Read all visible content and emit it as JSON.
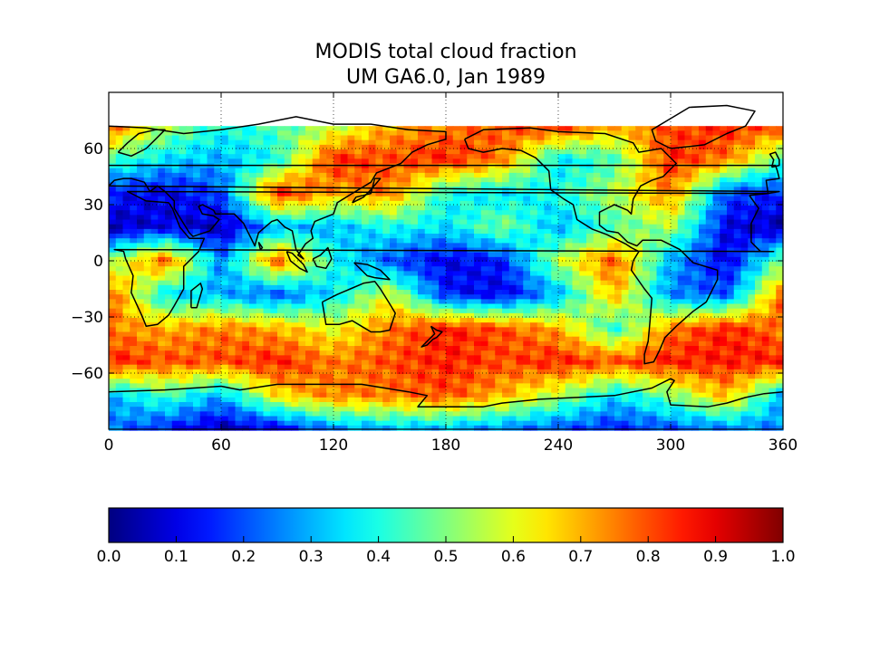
{
  "chart_data": {
    "type": "heatmap",
    "title": "MODIS total cloud fraction",
    "subtitle": "UM GA6.0, Jan 1989",
    "xlim": [
      0,
      360
    ],
    "ylim": [
      -90,
      90
    ],
    "x_ticks": [
      "0",
      "60",
      "120",
      "180",
      "240",
      "300",
      "360"
    ],
    "y_ticks": [
      "60",
      "30",
      "0",
      "−30",
      "−60"
    ],
    "y_tick_values": [
      60,
      30,
      0,
      -30,
      -60
    ],
    "x_tick_values": [
      0,
      60,
      120,
      180,
      240,
      300,
      360
    ],
    "grid": true,
    "data_lat_range": [
      -90,
      72
    ],
    "colorbar": {
      "orientation": "horizontal",
      "colormap": "jet",
      "range": [
        0.0,
        1.0
      ],
      "ticks": [
        "0.0",
        "0.1",
        "0.2",
        "0.3",
        "0.4",
        "0.5",
        "0.6",
        "0.7",
        "0.8",
        "0.9",
        "1.0"
      ]
    },
    "value_grid": {
      "lat_step_deg": 18,
      "lon_step_deg": 30,
      "lat_rows_north_to_south": [
        72,
        54,
        36,
        18,
        0,
        -18,
        -36,
        -54,
        -72,
        -90
      ],
      "values": [
        [
          0.8,
          0.55,
          0.4,
          0.45,
          0.55,
          0.7,
          0.75,
          0.8,
          0.85,
          0.7,
          0.8,
          0.85
        ],
        [
          0.45,
          0.35,
          0.3,
          0.4,
          0.85,
          0.8,
          0.85,
          0.75,
          0.35,
          0.45,
          0.85,
          0.75
        ],
        [
          0.15,
          0.1,
          0.2,
          0.85,
          0.7,
          0.75,
          0.4,
          0.35,
          0.4,
          0.55,
          0.75,
          0.2
        ],
        [
          0.05,
          0.1,
          0.05,
          0.3,
          0.3,
          0.4,
          0.35,
          0.5,
          0.3,
          0.45,
          0.55,
          0.1
        ],
        [
          0.5,
          0.8,
          0.25,
          0.8,
          0.4,
          0.2,
          0.1,
          0.15,
          0.55,
          0.8,
          0.3,
          0.1
        ],
        [
          0.8,
          0.35,
          0.3,
          0.2,
          0.35,
          0.6,
          0.15,
          0.1,
          0.3,
          0.7,
          0.25,
          0.2
        ],
        [
          0.75,
          0.7,
          0.75,
          0.7,
          0.6,
          0.75,
          0.85,
          0.8,
          0.7,
          0.4,
          0.75,
          0.85
        ],
        [
          0.85,
          0.8,
          0.8,
          0.85,
          0.75,
          0.8,
          0.85,
          0.8,
          0.85,
          0.8,
          0.85,
          0.85
        ],
        [
          0.3,
          0.45,
          0.3,
          0.65,
          0.75,
          0.75,
          0.8,
          0.7,
          0.55,
          0.35,
          0.5,
          0.7
        ],
        [
          0.25,
          0.15,
          0.05,
          0.1,
          0.25,
          0.3,
          0.3,
          0.25,
          0.2,
          0.15,
          0.2,
          0.25
        ]
      ]
    }
  }
}
